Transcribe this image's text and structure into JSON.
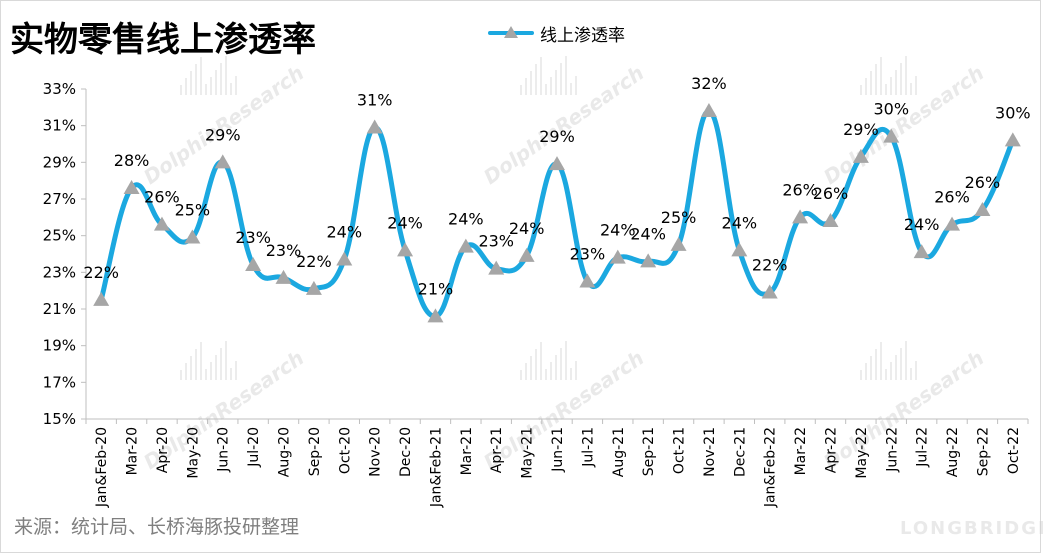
{
  "title": "实物零售线上渗透率",
  "source": "来源：统计局、长桥海豚投研整理",
  "watermark": "DolphinResearch",
  "brand": "LONGBRIDGE",
  "chart_data": {
    "type": "line",
    "series": [
      {
        "name": "线上渗透率",
        "color": "#1ba8e0",
        "marker_color": "#a6a6a6",
        "values": [
          21.5,
          27.6,
          25.6,
          24.9,
          29.0,
          23.4,
          22.7,
          22.1,
          23.7,
          30.9,
          24.2,
          20.6,
          24.4,
          23.2,
          23.9,
          28.9,
          22.5,
          23.8,
          23.6,
          24.5,
          31.8,
          24.2,
          21.9,
          26.0,
          25.8,
          29.3,
          30.4,
          24.1,
          25.6,
          26.4,
          30.2
        ]
      }
    ],
    "categories": [
      "Jan&Feb-20",
      "Mar-20",
      "Apr-20",
      "May-20",
      "Jun-20",
      "Jul-20",
      "Aug-20",
      "Sep-20",
      "Oct-20",
      "Nov-20",
      "Dec-20",
      "Jan&Feb-21",
      "Mar-21",
      "Apr-21",
      "May-21",
      "Jun-21",
      "Jul-21",
      "Aug-21",
      "Sep-21",
      "Oct-21",
      "Nov-21",
      "Dec-21",
      "Jan&Feb-22",
      "Mar-22",
      "Apr-22",
      "May-22",
      "Jun-22",
      "Jul-22",
      "Aug-22",
      "Sep-22",
      "Oct-22"
    ],
    "data_labels": [
      "22%",
      "28%",
      "26%",
      "25%",
      "29%",
      "23%",
      "23%",
      "22%",
      "24%",
      "31%",
      "24%",
      "21%",
      "24%",
      "23%",
      "24%",
      "29%",
      "23%",
      "24%",
      "24%",
      "25%",
      "32%",
      "24%",
      "22%",
      "26%",
      "26%",
      "29%",
      "30%",
      "24%",
      "26%",
      "26%",
      "30%"
    ],
    "yticks": [
      "15%",
      "17%",
      "19%",
      "21%",
      "23%",
      "25%",
      "27%",
      "29%",
      "31%",
      "33%"
    ],
    "ylim": [
      15,
      33
    ],
    "grid": false,
    "legend_position": "top-center"
  }
}
